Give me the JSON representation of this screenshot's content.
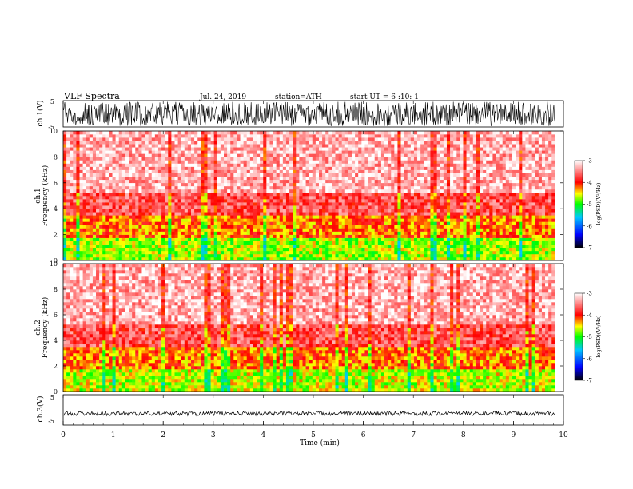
{
  "header": {
    "title": "VLF Spectra",
    "date": "Jul. 24, 2019",
    "station": "station=ATH",
    "start": "start UT =  6 :10: 1"
  },
  "chart_data": [
    {
      "type": "line",
      "panel": "ch1-waveform",
      "ylabel": "ch.1(V)",
      "ylim": [
        -5,
        5
      ],
      "y_ticks": [
        "5",
        "-5"
      ],
      "x_range_min": [
        0,
        9.83
      ],
      "signal": "dense noise, amplitude approx ±4.5 V"
    },
    {
      "type": "heatmap",
      "panel": "ch1-spectrogram",
      "ylabel": "ch.1\nFrequency (kHz)",
      "ylim": [
        0,
        10
      ],
      "y_ticks": [
        "0",
        "2",
        "4",
        "6",
        "8",
        "10"
      ],
      "x_range_min": [
        0,
        9.83
      ],
      "bands": [
        {
          "f": [
            0,
            1.7
          ],
          "level": -4.7
        },
        {
          "f": [
            1.7,
            3.4
          ],
          "level": -4.2
        },
        {
          "f": [
            3.4,
            5.2
          ],
          "level": -3.7
        },
        {
          "f": [
            5.2,
            10
          ],
          "level": -3.3
        }
      ],
      "colorbar": {
        "range": [
          -7,
          -3
        ],
        "ticks": [
          "-3",
          "-4",
          "-5",
          "-6",
          "-7"
        ],
        "label": "log(PSD)(V²/Hz)"
      }
    },
    {
      "type": "heatmap",
      "panel": "ch2-spectrogram",
      "ylabel": "ch.2\nFrequency (kHz)",
      "ylim": [
        0,
        10
      ],
      "y_ticks": [
        "0",
        "2",
        "4",
        "6",
        "8",
        "10"
      ],
      "x_range_min": [
        0,
        9.83
      ],
      "bands": [
        {
          "f": [
            0,
            1.7
          ],
          "level": -4.6
        },
        {
          "f": [
            1.7,
            3.4
          ],
          "level": -4.2
        },
        {
          "f": [
            3.4,
            5.2
          ],
          "level": -3.7
        },
        {
          "f": [
            5.2,
            10
          ],
          "level": -3.3
        }
      ],
      "colorbar": {
        "range": [
          -7,
          -3
        ],
        "ticks": [
          "-3",
          "-4",
          "-5",
          "-6",
          "-7"
        ],
        "label": "log(PSD)(V²/Hz)"
      }
    },
    {
      "type": "line",
      "panel": "ch3-waveform",
      "ylabel": "ch.3(V)",
      "ylim": [
        -5,
        5
      ],
      "y_ticks": [
        "5",
        "-5"
      ],
      "x_range_min": [
        0,
        9.83
      ],
      "signal": "low amplitude band near -1 V"
    }
  ],
  "xaxis": {
    "label": "Time (min)",
    "ticks": [
      "0",
      "1",
      "2",
      "3",
      "4",
      "5",
      "6",
      "7",
      "8",
      "9",
      "10"
    ],
    "range": [
      0,
      10
    ]
  }
}
